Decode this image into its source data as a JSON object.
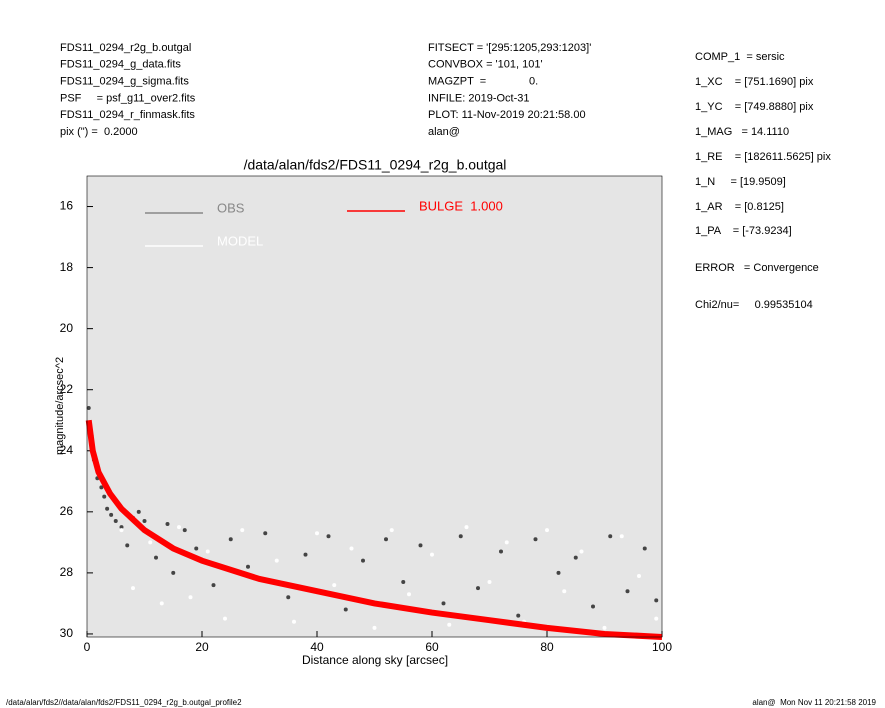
{
  "header_left": [
    "FDS11_0294_r2g_b.outgal",
    "FDS11_0294_g_data.fits",
    "FDS11_0294_g_sigma.fits",
    "PSF     = psf_g11_over2.fits",
    "FDS11_0294_r_finmask.fits",
    "pix (\") =  0.2000"
  ],
  "header_middle": [
    "FITSECT = '[295:1205,293:1203]'",
    "CONVBOX = '101, 101'",
    "MAGZPT  =              0.",
    "INFILE: 2019-Oct-31",
    "PLOT: 11-Nov-2019 20:21:58.00",
    "alan@"
  ],
  "params": [
    "COMP_1  = sersic",
    "1_XC    = [751.1690] pix",
    "1_YC    = [749.8880] pix",
    "1_MAG   = 14.1110",
    "1_RE    = [182611.5625] pix",
    "1_N     = [19.9509]",
    "1_AR    = [0.8125]",
    "1_PA    = [-73.9234]",
    "ERROR   = Convergence",
    "Chi2/nu=     0.99535104"
  ],
  "footer_left": "/data/alan/fds2//data/alan/fds2/FDS11_0294_r2g_b.outgal_profile2",
  "footer_right": "alan@  Mon Nov 11 20:21:58 2019",
  "chart_data": {
    "type": "scatter",
    "title": "/data/alan/fds2/FDS11_0294_r2g_b.outgal",
    "xlabel": "Distance along sky [arcsec]",
    "ylabel": "magnitude/arcsec^2",
    "xlim": [
      0,
      100
    ],
    "ylim": [
      30.1,
      15
    ],
    "xticks": [
      0,
      20,
      40,
      60,
      80,
      100
    ],
    "yticks": [
      16,
      18,
      20,
      22,
      24,
      26,
      28,
      30
    ],
    "series": [
      {
        "name": "OBS",
        "color": "#444444",
        "legend_color": "#888888",
        "x": [
          0.3,
          0.8,
          1.2,
          1.8,
          2.5,
          3,
          3.5,
          4.2,
          5,
          6,
          7,
          8,
          9,
          10,
          12,
          14,
          15,
          17,
          19,
          22,
          25,
          28,
          31,
          35,
          38,
          42,
          45,
          48,
          52,
          55,
          58,
          62,
          65,
          68,
          72,
          75,
          78,
          82,
          85,
          88,
          91,
          94,
          97,
          99
        ],
        "values": [
          22.6,
          23.5,
          24.3,
          24.9,
          25.2,
          25.5,
          25.9,
          26.1,
          26.3,
          26.5,
          27.1,
          26.2,
          26.0,
          26.3,
          27.5,
          26.4,
          28.0,
          26.6,
          27.2,
          28.4,
          26.9,
          27.8,
          26.7,
          28.8,
          27.4,
          26.8,
          29.2,
          27.6,
          26.9,
          28.3,
          27.1,
          29.0,
          26.8,
          28.5,
          27.3,
          29.4,
          26.9,
          28.0,
          27.5,
          29.1,
          26.8,
          28.6,
          27.2,
          28.9
        ]
      },
      {
        "name": "MODEL",
        "color": "#ffffff",
        "legend_color": "#ffffff",
        "x": [
          6,
          8,
          11,
          13,
          16,
          18,
          21,
          24,
          27,
          30,
          33,
          36,
          40,
          43,
          46,
          50,
          53,
          56,
          60,
          63,
          66,
          70,
          73,
          76,
          80,
          83,
          86,
          90,
          93,
          96,
          99
        ],
        "values": [
          26.6,
          28.5,
          27.0,
          29.0,
          26.5,
          28.8,
          27.3,
          29.5,
          26.6,
          28.2,
          27.6,
          29.6,
          26.7,
          28.4,
          27.2,
          29.8,
          26.6,
          28.7,
          27.4,
          29.7,
          26.5,
          28.3,
          27.0,
          29.6,
          26.6,
          28.6,
          27.3,
          29.8,
          26.8,
          28.1,
          29.5
        ]
      },
      {
        "name": "BULGE  1.000",
        "color": "#ff0000",
        "legend_color": "#ff0000",
        "line": true,
        "x": [
          0.3,
          1,
          2,
          4,
          6,
          10,
          15,
          20,
          30,
          40,
          50,
          60,
          70,
          80,
          90,
          100
        ],
        "values": [
          23.0,
          24.0,
          24.7,
          25.4,
          25.9,
          26.6,
          27.2,
          27.6,
          28.2,
          28.6,
          29.0,
          29.3,
          29.55,
          29.8,
          30.0,
          30.1
        ]
      }
    ]
  }
}
